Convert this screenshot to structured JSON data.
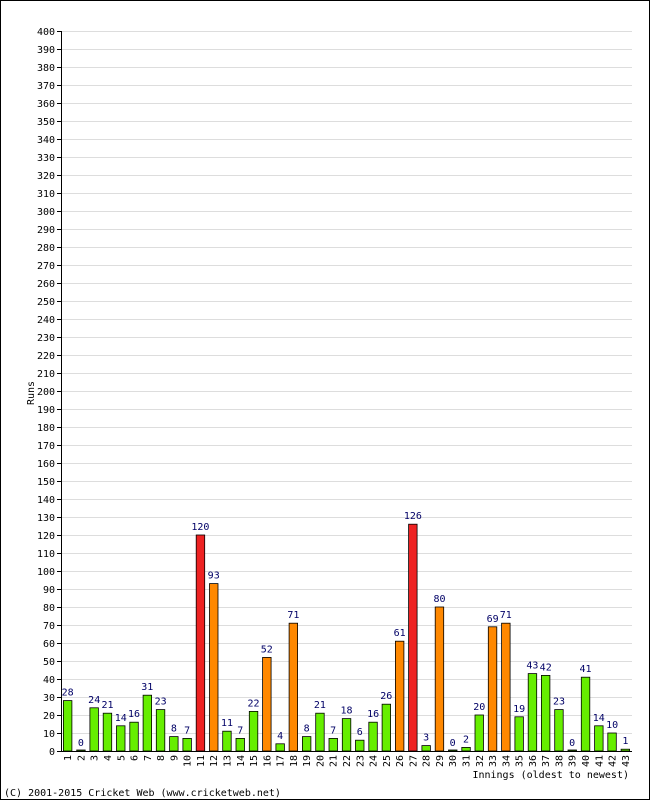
{
  "chart_data": {
    "type": "bar",
    "xlabel": "Innings (oldest to newest)",
    "ylabel": "Runs",
    "ylim": [
      0,
      400
    ],
    "ytick_step": 10,
    "grid": true,
    "categories": [
      "1",
      "2",
      "3",
      "4",
      "5",
      "6",
      "7",
      "8",
      "9",
      "10",
      "11",
      "12",
      "13",
      "14",
      "15",
      "16",
      "17",
      "18",
      "19",
      "20",
      "21",
      "22",
      "23",
      "24",
      "25",
      "26",
      "27",
      "28",
      "29",
      "30",
      "31",
      "32",
      "33",
      "34",
      "35",
      "36",
      "37",
      "38",
      "39",
      "40",
      "41",
      "42",
      "43"
    ],
    "values": [
      28,
      0,
      24,
      21,
      14,
      16,
      31,
      23,
      8,
      7,
      120,
      93,
      11,
      7,
      22,
      52,
      4,
      71,
      8,
      21,
      7,
      18,
      6,
      16,
      26,
      61,
      126,
      3,
      80,
      0,
      2,
      20,
      69,
      71,
      19,
      43,
      42,
      23,
      0,
      41,
      14,
      10,
      1
    ],
    "colors": {
      "under_50": "#66ee00",
      "fifty": "#ff8800",
      "hundred": "#ee2222",
      "label": "#000066",
      "grid": "#dddddd"
    }
  },
  "footer": {
    "copyright": "(C) 2001-2015 Cricket Web (www.cricketweb.net)"
  }
}
